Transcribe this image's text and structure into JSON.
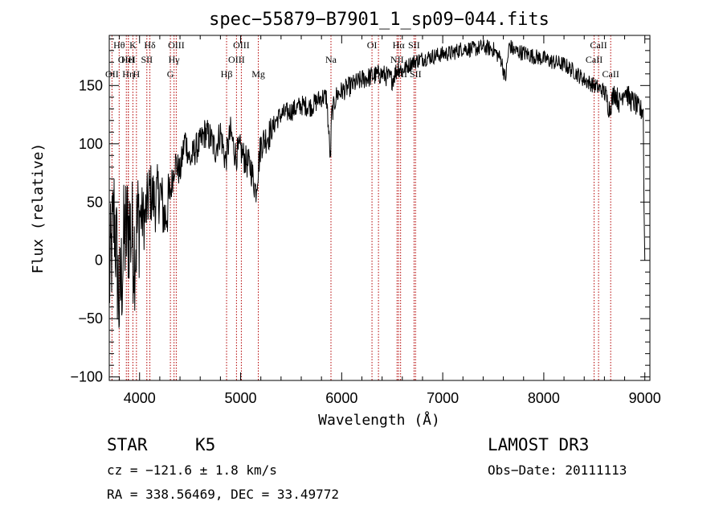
{
  "chart_data": {
    "type": "line",
    "title": "spec−55879−B7901_1_sp09−044.fits",
    "xlabel": "Wavelength (Å)",
    "ylabel": "Flux (relative)",
    "xlim": [
      3700,
      9050
    ],
    "ylim": [
      -103,
      193
    ],
    "x_ticks": [
      4000,
      5000,
      6000,
      7000,
      8000,
      9000
    ],
    "x_tick_labels": [
      "4000",
      "5000",
      "6000",
      "7000",
      "8000",
      "9000"
    ],
    "y_ticks": [
      -100,
      -50,
      0,
      50,
      100,
      150
    ],
    "y_tick_labels": [
      "−100",
      "−50",
      "0",
      "50",
      "100",
      "150"
    ],
    "series": [
      {
        "name": "flux",
        "x": [
          3700,
          3750,
          3800,
          3850,
          3900,
          3950,
          4000,
          4050,
          4100,
          4150,
          4200,
          4250,
          4300,
          4350,
          4400,
          4450,
          4500,
          4550,
          4600,
          4650,
          4700,
          4750,
          4800,
          4850,
          4900,
          4950,
          5000,
          5050,
          5100,
          5150,
          5200,
          5250,
          5300,
          5350,
          5400,
          5500,
          5600,
          5700,
          5800,
          5850,
          5890,
          5900,
          5950,
          6000,
          6100,
          6200,
          6300,
          6400,
          6500,
          6560,
          6600,
          6700,
          6800,
          6900,
          7000,
          7100,
          7200,
          7300,
          7400,
          7500,
          7580,
          7620,
          7660,
          7700,
          7800,
          7900,
          8000,
          8100,
          8200,
          8300,
          8400,
          8500,
          8600,
          8650,
          8700,
          8750,
          8800,
          8850,
          8900,
          8950,
          8985,
          8990,
          9000
        ],
        "y": [
          -20,
          40,
          -40,
          20,
          30,
          10,
          40,
          35,
          60,
          50,
          60,
          35,
          55,
          85,
          75,
          105,
          85,
          95,
          100,
          110,
          105,
          95,
          110,
          85,
          110,
          90,
          95,
          85,
          80,
          60,
          100,
          105,
          110,
          120,
          125,
          128,
          133,
          132,
          140,
          140,
          85,
          125,
          142,
          145,
          150,
          155,
          158,
          160,
          155,
          166,
          163,
          170,
          173,
          175,
          177,
          178,
          182,
          181,
          183,
          181,
          172,
          155,
          185,
          180,
          178,
          175,
          173,
          170,
          168,
          162,
          155,
          150,
          145,
          130,
          145,
          135,
          148,
          138,
          135,
          128,
          130,
          55,
          0
        ]
      }
    ],
    "emission_lines": [
      {
        "name": "OII",
        "wave": 3727,
        "row": 2
      },
      {
        "name": "Hθ",
        "wave": 3798,
        "row": 0
      },
      {
        "name": "OIII",
        "wave": 3869,
        "row": 1
      },
      {
        "name": "Hη",
        "wave": 3889,
        "row": 2
      },
      {
        "name": "HeI",
        "wave": 3889,
        "row": 1
      },
      {
        "name": "K",
        "wave": 3934,
        "row": 0
      },
      {
        "name": "H",
        "wave": 3969,
        "row": 2
      },
      {
        "name": "SII",
        "wave": 4072,
        "row": 1
      },
      {
        "name": "Hδ",
        "wave": 4102,
        "row": 0
      },
      {
        "name": "G",
        "wave": 4305,
        "row": 2
      },
      {
        "name": "OIII",
        "wave": 4363,
        "row": 0
      },
      {
        "name": "Hγ",
        "wave": 4341,
        "row": 1
      },
      {
        "name": "Hβ",
        "wave": 4861,
        "row": 2
      },
      {
        "name": "OIII",
        "wave": 4959,
        "row": 1
      },
      {
        "name": "OIII",
        "wave": 5007,
        "row": 0
      },
      {
        "name": "Mg",
        "wave": 5175,
        "row": 2
      },
      {
        "name": "Na",
        "wave": 5894,
        "row": 1
      },
      {
        "name": "OI",
        "wave": 6300,
        "row": 0
      },
      {
        "name": "OI",
        "wave": 6364,
        "row": 2
      },
      {
        "name": "NII",
        "wave": 6548,
        "row": 1
      },
      {
        "name": "Hα",
        "wave": 6563,
        "row": 0
      },
      {
        "name": "NII",
        "wave": 6583,
        "row": 2
      },
      {
        "name": "SII",
        "wave": 6716,
        "row": 0
      },
      {
        "name": "SII",
        "wave": 6731,
        "row": 2
      },
      {
        "name": "CaII",
        "wave": 8498,
        "row": 1
      },
      {
        "name": "CaII",
        "wave": 8542,
        "row": 0
      },
      {
        "name": "CaII",
        "wave": 8662,
        "row": 2
      }
    ]
  },
  "info": {
    "object_type": "STAR",
    "subclass": "K5",
    "survey": "LAMOST DR3",
    "redshift": "cz = −121.6 ± 1.8 km/s",
    "obs_date": "Obs−Date: 20111113",
    "coords": "RA = 338.56469, DEC =  33.49772"
  }
}
